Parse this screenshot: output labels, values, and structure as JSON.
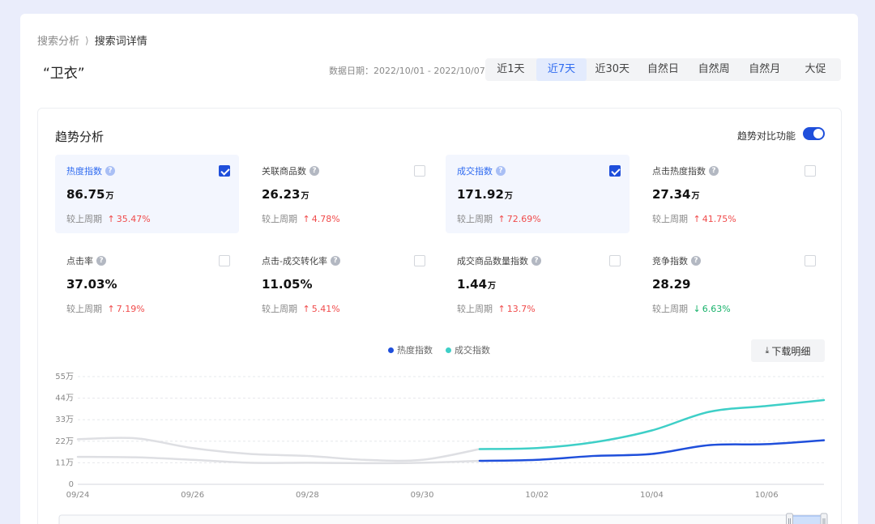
{
  "breadcrumb": {
    "parent": "搜索分析",
    "current": "搜索词详情"
  },
  "title": "“卫衣”",
  "date_range": "数据日期：2022/10/01 - 2022/10/07",
  "range_tabs": [
    {
      "label": "近1天",
      "active": false
    },
    {
      "label": "近7天",
      "active": true
    },
    {
      "label": "近30天",
      "active": false
    },
    {
      "label": "自然日",
      "active": false
    },
    {
      "label": "自然周",
      "active": false
    },
    {
      "label": "自然月",
      "active": false
    },
    {
      "label": "大促",
      "active": false
    }
  ],
  "trend": {
    "title": "趋势分析",
    "compare_label": "趋势对比功能",
    "compare_enabled": true
  },
  "metrics": [
    {
      "name": "热度指数",
      "value": "86.75",
      "unit": "万",
      "change_label": "较上周期",
      "change": "35.47%",
      "direction": "up",
      "checked": true
    },
    {
      "name": "关联商品数",
      "value": "26.23",
      "unit": "万",
      "change_label": "较上周期",
      "change": "4.78%",
      "direction": "up",
      "checked": false
    },
    {
      "name": "成交指数",
      "value": "171.92",
      "unit": "万",
      "change_label": "较上周期",
      "change": "72.69%",
      "direction": "up",
      "checked": true
    },
    {
      "name": "点击热度指数",
      "value": "27.34",
      "unit": "万",
      "change_label": "较上周期",
      "change": "41.75%",
      "direction": "up",
      "checked": false
    },
    {
      "name": "点击率",
      "value": "37.03%",
      "unit": "",
      "change_label": "较上周期",
      "change": "7.19%",
      "direction": "up",
      "checked": false
    },
    {
      "name": "点击-成交转化率",
      "value": "11.05%",
      "unit": "",
      "change_label": "较上周期",
      "change": "5.41%",
      "direction": "up",
      "checked": false
    },
    {
      "name": "成交商品数量指数",
      "value": "1.44",
      "unit": "万",
      "change_label": "较上周期",
      "change": "13.7%",
      "direction": "up",
      "checked": false
    },
    {
      "name": "竞争指数",
      "value": "28.29",
      "unit": "",
      "change_label": "较上周期",
      "change": "6.63%",
      "direction": "down",
      "checked": false
    }
  ],
  "download_label": "下载明细",
  "colors": {
    "accent": "#1f4fdb",
    "series1": "#1f4fdb",
    "series2": "#3ecfc7",
    "previous": "#dedfe3",
    "up": "#f04b4b",
    "down": "#18b26b"
  },
  "chart_data": {
    "type": "line",
    "legend": [
      "热度指数",
      "成交指数"
    ],
    "y_ticks": [
      "55万",
      "44万",
      "33万",
      "22万",
      "11万",
      "0"
    ],
    "ylim": [
      0,
      55
    ],
    "y_unit": "万",
    "x_ticks": [
      "09/24",
      "09/26",
      "09/28",
      "09/30",
      "10/02",
      "10/04",
      "10/06"
    ],
    "x": [
      "09/24",
      "09/25",
      "09/26",
      "09/27",
      "09/28",
      "09/29",
      "09/30",
      "10/01",
      "10/02",
      "10/03",
      "10/04",
      "10/05",
      "10/06",
      "10/07"
    ],
    "series": [
      {
        "name": "热度指数",
        "x": [
          "10/01",
          "10/02",
          "10/03",
          "10/04",
          "10/05",
          "10/06",
          "10/07"
        ],
        "values": [
          12,
          12.5,
          14.5,
          15.5,
          20,
          20.5,
          22.5
        ]
      },
      {
        "name": "成交指数",
        "x": [
          "10/01",
          "10/02",
          "10/03",
          "10/04",
          "10/05",
          "10/06",
          "10/07"
        ],
        "values": [
          18,
          18.5,
          21.5,
          27.5,
          37,
          40,
          43
        ]
      },
      {
        "x": [
          "09/24",
          "09/25",
          "09/26",
          "09/27",
          "09/28",
          "09/29",
          "09/30",
          "10/01"
        ],
        "values": [
          14,
          13.8,
          12.5,
          11,
          11,
          10.8,
          11,
          12
        ]
      },
      {
        "x": [
          "09/24",
          "09/25",
          "09/26",
          "09/27",
          "09/28",
          "09/29",
          "09/30",
          "10/01"
        ],
        "values": [
          23,
          23.5,
          18.5,
          15.5,
          14.5,
          12.5,
          12.5,
          18
        ]
      }
    ],
    "grid": "horizontal dashed",
    "legend_position": "top-center",
    "zoom_window": [
      0.955,
      1.0
    ]
  }
}
